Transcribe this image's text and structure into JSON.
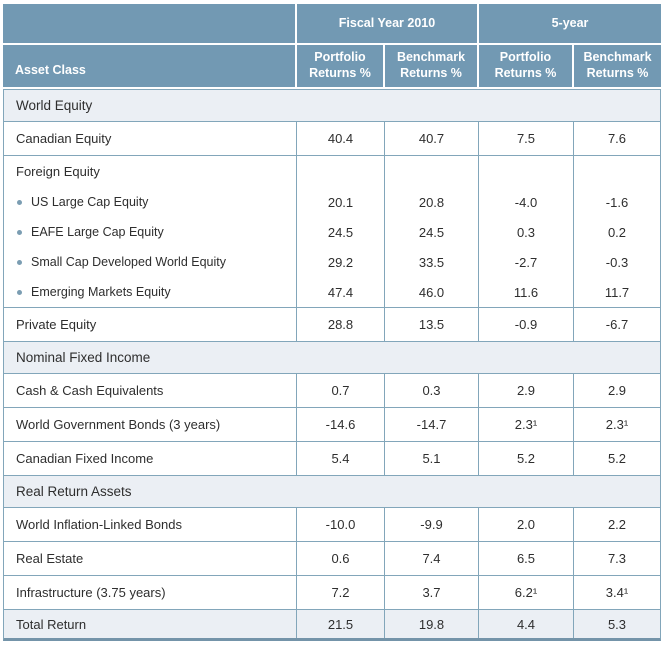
{
  "table": {
    "title_groups": {
      "fiscal_year": "Fiscal Year 2010",
      "five_year": "5-year"
    },
    "header": {
      "asset_class": "Asset Class",
      "sub_headers": [
        "Portfolio Returns %",
        "Benchmark Returns %",
        "Portfolio Returns %",
        "Benchmark Returns %"
      ]
    },
    "rows": [
      {
        "type": "section",
        "label": "World Equity"
      },
      {
        "type": "data",
        "label": "Canadian Equity",
        "values": [
          "40.4",
          "40.7",
          "7.5",
          "7.6"
        ]
      },
      {
        "type": "group",
        "label": "Foreign Equity",
        "values": [
          "",
          "",
          "",
          ""
        ]
      },
      {
        "type": "bullet",
        "label": "US Large Cap Equity",
        "values": [
          "20.1",
          "20.8",
          "-4.0",
          "-1.6"
        ]
      },
      {
        "type": "bullet",
        "label": "EAFE Large Cap Equity",
        "values": [
          "24.5",
          "24.5",
          "0.3",
          "0.2"
        ]
      },
      {
        "type": "bullet",
        "label": "Small Cap Developed World Equity",
        "values": [
          "29.2",
          "33.5",
          "-2.7",
          "-0.3"
        ]
      },
      {
        "type": "bullet",
        "label": "Emerging Markets Equity",
        "values": [
          "47.4",
          "46.0",
          "11.6",
          "11.7"
        ]
      },
      {
        "type": "data",
        "label": "Private Equity",
        "values": [
          "28.8",
          "13.5",
          "-0.9",
          "-6.7"
        ]
      },
      {
        "type": "section",
        "label": "Nominal Fixed Income"
      },
      {
        "type": "data",
        "label": "Cash & Cash Equivalents",
        "values": [
          "0.7",
          "0.3",
          "2.9",
          "2.9"
        ]
      },
      {
        "type": "data",
        "label": "World Government Bonds (3 years)",
        "values": [
          "-14.6",
          "-14.7",
          "2.3¹",
          "2.3¹"
        ]
      },
      {
        "type": "data",
        "label": "Canadian Fixed Income",
        "values": [
          "5.4",
          "5.1",
          "5.2",
          "5.2"
        ]
      },
      {
        "type": "section",
        "label": "Real Return Assets"
      },
      {
        "type": "data",
        "label": "World Inflation-Linked Bonds",
        "values": [
          "-10.0",
          "-9.9",
          "2.0",
          "2.2"
        ]
      },
      {
        "type": "data",
        "label": "Real Estate",
        "values": [
          "0.6",
          "7.4",
          "6.5",
          "7.3"
        ]
      },
      {
        "type": "data",
        "label": "Infrastructure (3.75 years)",
        "values": [
          "7.2",
          "3.7",
          "6.2¹",
          "3.4¹"
        ]
      },
      {
        "type": "total",
        "label": "Total Return",
        "values": [
          "21.5",
          "19.8",
          "4.4",
          "5.3"
        ]
      }
    ],
    "colors": {
      "header_bg": "#7299b3",
      "border": "#82a6ba",
      "shade_bg": "#ebeff4"
    }
  }
}
